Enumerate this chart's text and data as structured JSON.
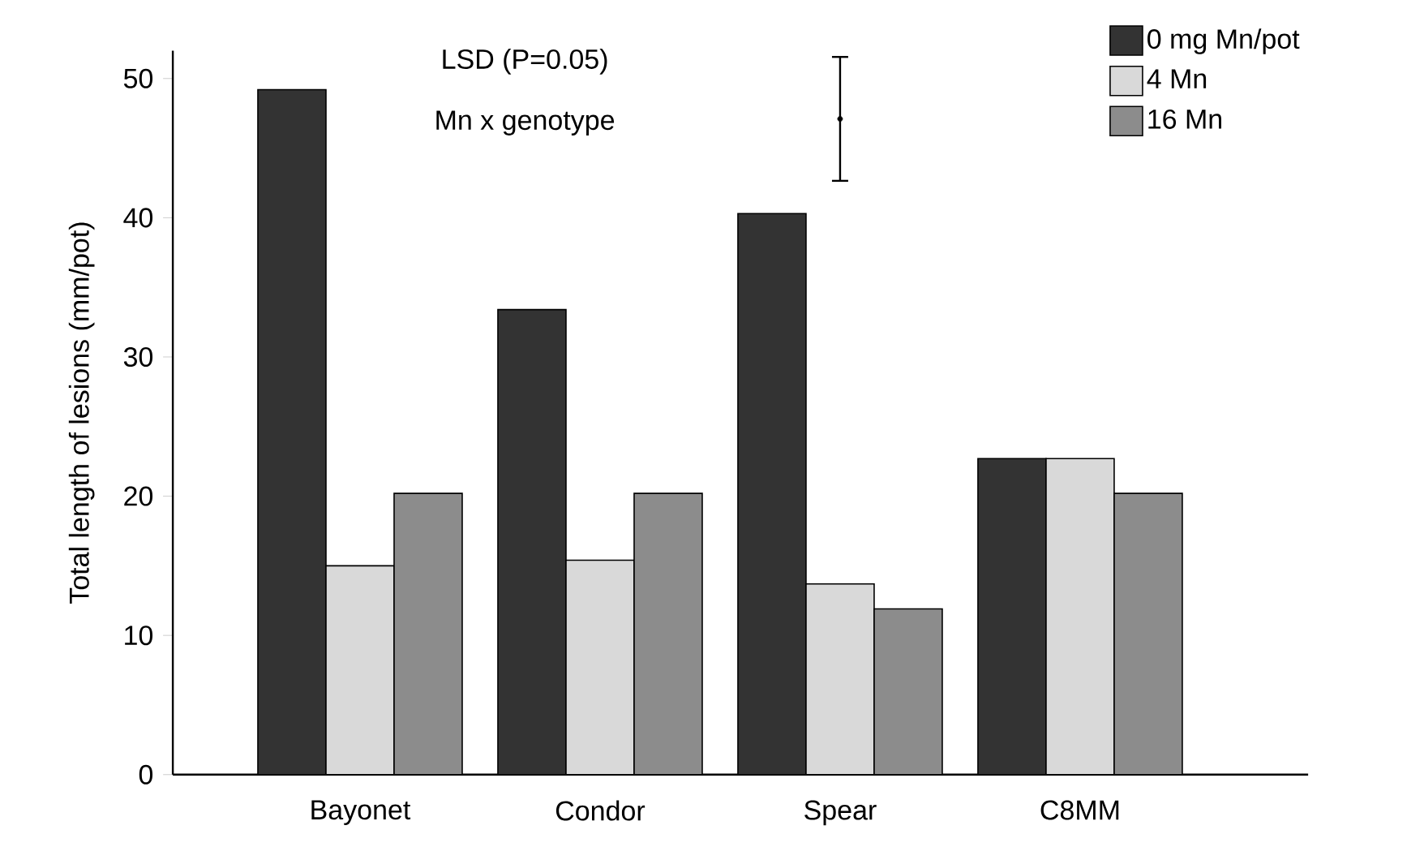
{
  "chart_data": {
    "type": "bar",
    "ylabel": "Total length of lesions (mm/pot)",
    "categories": [
      "Bayonet",
      "Condor",
      "Spear",
      "C8MM"
    ],
    "series": [
      {
        "name": "0 mg Mn/pot",
        "color": "#333333",
        "values": [
          49.2,
          33.4,
          40.3,
          22.7
        ]
      },
      {
        "name": "4 Mn",
        "color": "#d9d9d9",
        "values": [
          15.0,
          15.4,
          13.7,
          22.7
        ]
      },
      {
        "name": "16 Mn",
        "color": "#8c8c8c",
        "values": [
          20.2,
          20.2,
          11.9,
          20.2
        ]
      },
      {
        "type": "scatter",
        "marker": "circle",
        "color": "#000000",
        "values": [
          null,
          null,
          47.1,
          null
        ],
        "errors": [
          null,
          null,
          4.45,
          null
        ]
      }
    ],
    "ylim": [
      0,
      52
    ],
    "yticks": [
      0,
      10,
      20,
      30,
      40,
      50
    ],
    "grid": false,
    "legend": "top right",
    "annotations": [
      "LSD (P=0.05)",
      "Mn x genotype"
    ]
  }
}
